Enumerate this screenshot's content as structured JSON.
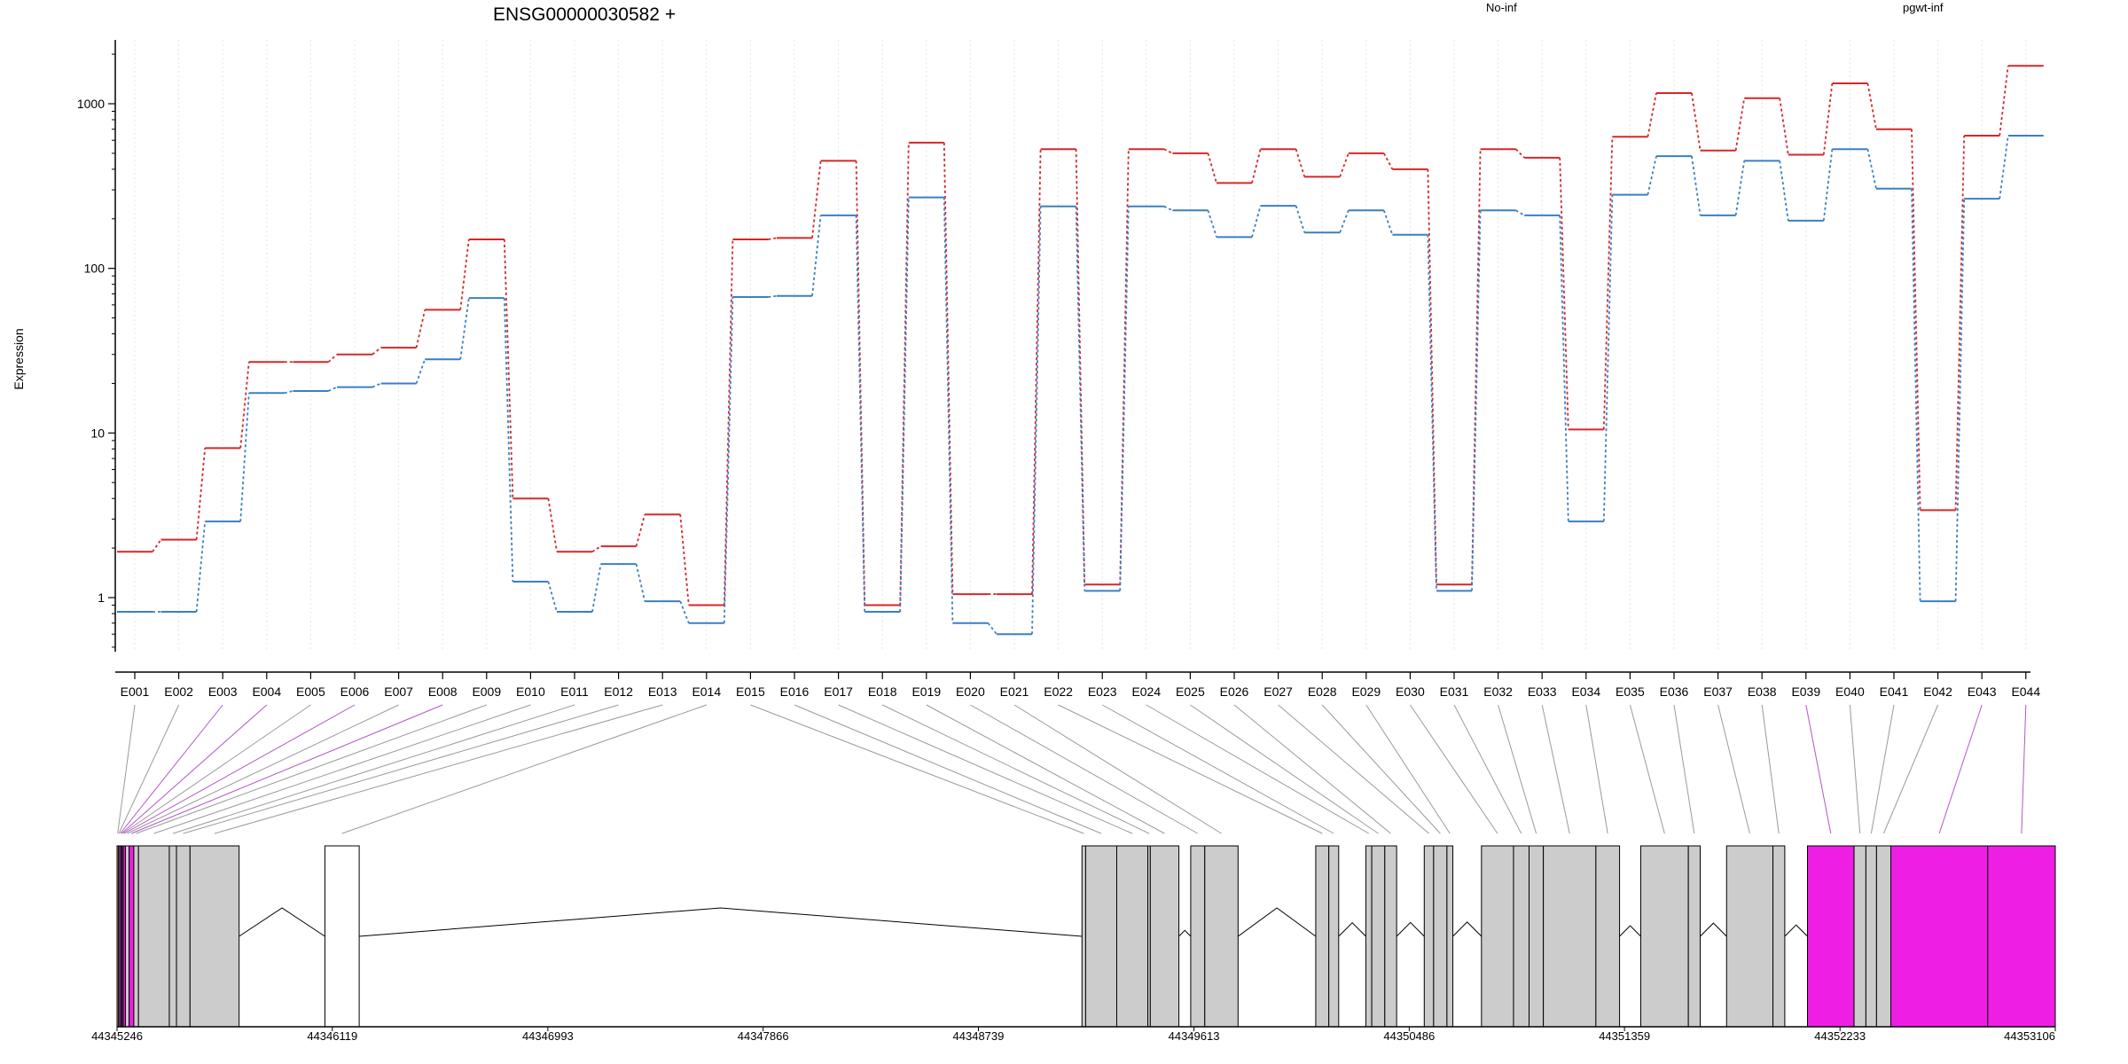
{
  "colors": {
    "series_red": "#d62728",
    "series_blue": "#3a7fc4",
    "exon_fill": "#cccccc",
    "exon_highlight": "#ee1ee4",
    "exon_white": "#ffffff",
    "connector_gray": "#9a9a9a",
    "connector_magenta": "#b455c8"
  },
  "chart_data": {
    "type": "line",
    "title": "ENSG00000030582 +",
    "ylabel": "Expression",
    "xlabel": "",
    "yscale": "log",
    "ylim": [
      0.45,
      2200
    ],
    "y_ticks": [
      1,
      10,
      100,
      1000
    ],
    "y_tick_labels": [
      "1",
      "10",
      "100",
      "1000"
    ],
    "grid": "vertical dotted lines at each exon",
    "legend_placement": "top-right",
    "categories": [
      "E001",
      "E002",
      "E003",
      "E004",
      "E005",
      "E006",
      "E007",
      "E008",
      "E009",
      "E010",
      "E011",
      "E012",
      "E013",
      "E014",
      "E015",
      "E016",
      "E017",
      "E018",
      "E019",
      "E020",
      "E021",
      "E022",
      "E023",
      "E024",
      "E025",
      "E026",
      "E027",
      "E028",
      "E029",
      "E030",
      "E031",
      "E032",
      "E033",
      "E034",
      "E035",
      "E036",
      "E037",
      "E038",
      "E039",
      "E040",
      "E041",
      "E042",
      "E043",
      "E044"
    ],
    "series": [
      {
        "name": "No-inf",
        "color": "#d62728",
        "values": [
          1.9,
          2.25,
          8.1,
          27,
          27,
          30,
          33,
          56,
          150,
          4.0,
          1.9,
          2.05,
          3.2,
          0.9,
          150,
          153,
          450,
          0.9,
          580,
          1.05,
          1.05,
          530,
          1.2,
          530,
          500,
          330,
          530,
          360,
          500,
          400,
          1.2,
          530,
          470,
          10.5,
          630,
          1160,
          520,
          1080,
          490,
          1330,
          700,
          3.4,
          640,
          1700
        ]
      },
      {
        "name": "pgwt-inf",
        "color": "#3a7fc4",
        "values": [
          0.82,
          0.82,
          2.9,
          17.5,
          18,
          19,
          20,
          28,
          66,
          1.25,
          0.82,
          1.6,
          0.95,
          0.7,
          67,
          68,
          210,
          0.82,
          270,
          0.7,
          0.6,
          238,
          1.1,
          238,
          225,
          155,
          240,
          165,
          225,
          160,
          1.1,
          225,
          210,
          2.9,
          280,
          480,
          210,
          450,
          195,
          530,
          305,
          0.95,
          265,
          640
        ]
      }
    ],
    "gene_model": {
      "coordinate_ticks": [
        "44345246",
        "44346119",
        "44346993",
        "44347866",
        "44348739",
        "44349613",
        "44350486",
        "44351359",
        "44352233",
        "44353106"
      ],
      "coordinate_tick_values": [
        44345246,
        44346119,
        44346993,
        44347866,
        44348739,
        44349613,
        44350486,
        44351359,
        44352233,
        44353106
      ],
      "exons": [
        {
          "id": "E001",
          "start": 44345246,
          "end": 44345251,
          "kind": "gray"
        },
        {
          "id": "E002",
          "start": 44345251,
          "end": 44345256,
          "kind": "gray"
        },
        {
          "id": "E003",
          "start": 44345256,
          "end": 44345262,
          "kind": "magenta"
        },
        {
          "id": "E004",
          "start": 44345262,
          "end": 44345267,
          "kind": "magenta"
        },
        {
          "id": "E005",
          "start": 44345267,
          "end": 44345271,
          "kind": "gray"
        },
        {
          "id": "E006",
          "start": 44345271,
          "end": 44345280,
          "kind": "magenta"
        },
        {
          "id": "E007",
          "start": 44345280,
          "end": 44345295,
          "kind": "gray"
        },
        {
          "id": "E008",
          "start": 44345295,
          "end": 44345314,
          "kind": "magenta"
        },
        {
          "id": "E009",
          "start": 44345314,
          "end": 44345333,
          "kind": "gray"
        },
        {
          "id": "E010",
          "start": 44345333,
          "end": 44345458,
          "kind": "gray"
        },
        {
          "id": "E011",
          "start": 44345458,
          "end": 44345487,
          "kind": "gray"
        },
        {
          "id": "E012",
          "start": 44345487,
          "end": 44345542,
          "kind": "gray"
        },
        {
          "id": "E013",
          "start": 44345542,
          "end": 44345741,
          "kind": "gray"
        },
        {
          "id": "E014",
          "start": 44346089,
          "end": 44346228,
          "kind": "white"
        },
        {
          "id": "E015",
          "start": 44349159,
          "end": 44349174,
          "kind": "gray"
        },
        {
          "id": "E016",
          "start": 44349174,
          "end": 44349300,
          "kind": "gray"
        },
        {
          "id": "E017",
          "start": 44349300,
          "end": 44349426,
          "kind": "gray"
        },
        {
          "id": "E018",
          "start": 44349426,
          "end": 44349436,
          "kind": "gray"
        },
        {
          "id": "E019",
          "start": 44349436,
          "end": 44349552,
          "kind": "gray"
        },
        {
          "id": "E020",
          "start": 44349600,
          "end": 44349657,
          "kind": "gray"
        },
        {
          "id": "E021",
          "start": 44349657,
          "end": 44349792,
          "kind": "gray"
        },
        {
          "id": "E022",
          "start": 44350107,
          "end": 44350160,
          "kind": "gray"
        },
        {
          "id": "E023",
          "start": 44350160,
          "end": 44350200,
          "kind": "gray"
        },
        {
          "id": "E024",
          "start": 44350310,
          "end": 44350334,
          "kind": "gray"
        },
        {
          "id": "E025",
          "start": 44350334,
          "end": 44350387,
          "kind": "gray"
        },
        {
          "id": "E026",
          "start": 44350387,
          "end": 44350435,
          "kind": "gray"
        },
        {
          "id": "E027",
          "start": 44350547,
          "end": 44350585,
          "kind": "gray"
        },
        {
          "id": "E028",
          "start": 44350585,
          "end": 44350639,
          "kind": "gray"
        },
        {
          "id": "E029",
          "start": 44350639,
          "end": 44350663,
          "kind": "gray"
        },
        {
          "id": "E030",
          "start": 44350779,
          "end": 44350909,
          "kind": "gray"
        },
        {
          "id": "E031",
          "start": 44350909,
          "end": 44350972,
          "kind": "gray"
        },
        {
          "id": "E032",
          "start": 44350972,
          "end": 44351030,
          "kind": "gray"
        },
        {
          "id": "E033",
          "start": 44351030,
          "end": 44351243,
          "kind": "gray"
        },
        {
          "id": "E034",
          "start": 44351243,
          "end": 44351339,
          "kind": "gray"
        },
        {
          "id": "E035",
          "start": 44351425,
          "end": 44351618,
          "kind": "gray"
        },
        {
          "id": "E036",
          "start": 44351618,
          "end": 44351666,
          "kind": "gray"
        },
        {
          "id": "E037",
          "start": 44351773,
          "end": 44351961,
          "kind": "gray"
        },
        {
          "id": "E038",
          "start": 44351961,
          "end": 44352009,
          "kind": "gray"
        },
        {
          "id": "E039",
          "start": 44352101,
          "end": 44352290,
          "kind": "magenta"
        },
        {
          "id": "E040",
          "start": 44352290,
          "end": 44352338,
          "kind": "gray"
        },
        {
          "id": "E041",
          "start": 44352338,
          "end": 44352381,
          "kind": "gray"
        },
        {
          "id": "E042",
          "start": 44352381,
          "end": 44352439,
          "kind": "gray"
        },
        {
          "id": "E043",
          "start": 44352439,
          "end": 44352832,
          "kind": "magenta"
        },
        {
          "id": "E044",
          "start": 44352832,
          "end": 44353106,
          "kind": "magenta"
        }
      ]
    }
  }
}
